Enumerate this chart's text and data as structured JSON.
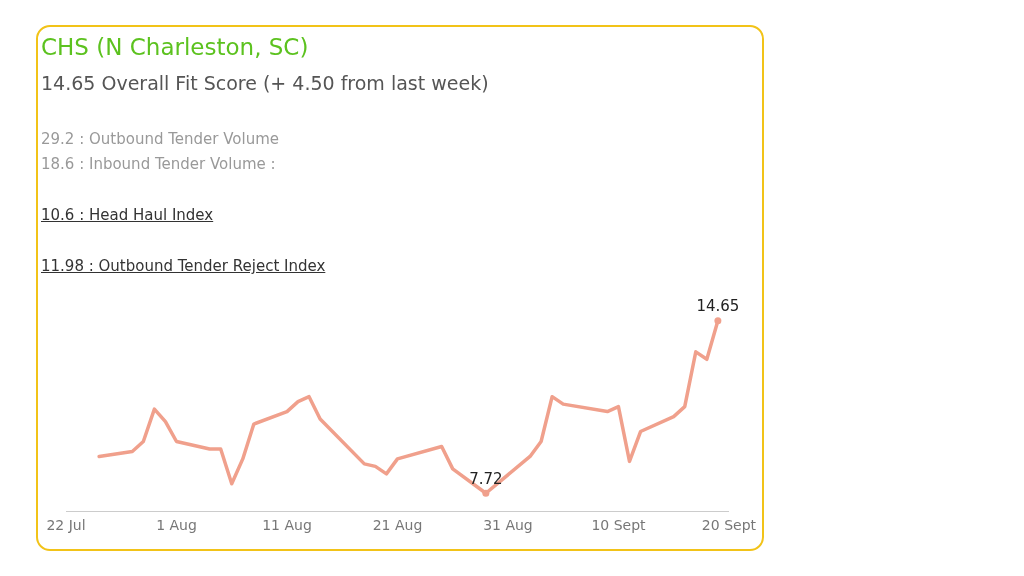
{
  "chart_data": {
    "type": "line",
    "title": "CHS (N Charleston, SC)",
    "subtitle": "14.65 Overall Fit Score (+ 4.50 from last week)",
    "annotations": [
      "29.2 : Outbound Tender Volume",
      "18.6 : Inbound Tender Volume :",
      "10.6 : Head Haul Index",
      "11.98 : Outbound Tender Reject Index"
    ],
    "x": [
      "--07-25",
      "--07-28",
      "--07-29",
      "--07-30",
      "--07-31",
      "--08-01",
      "--08-04",
      "--08-05",
      "--08-06",
      "--08-07",
      "--08-08",
      "--08-11",
      "--08-12",
      "--08-13",
      "--08-14",
      "--08-18",
      "--08-19",
      "--08-20",
      "--08-21",
      "--08-25",
      "--08-26",
      "--08-29",
      "--09-02",
      "--09-03",
      "--09-04",
      "--09-05",
      "--09-09",
      "--09-10",
      "--09-11",
      "--09-12",
      "--09-15",
      "--09-16",
      "--09-17",
      "--09-18",
      "--09-19"
    ],
    "series": [
      {
        "color": "#f0a08c",
        "values": [
          9.2,
          9.4,
          9.8,
          11.1,
          10.6,
          9.8,
          9.5,
          9.5,
          8.1,
          9.1,
          10.5,
          11.0,
          11.4,
          11.6,
          10.7,
          8.9,
          8.8,
          8.5,
          9.1,
          9.6,
          8.7,
          7.72,
          9.2,
          9.8,
          11.6,
          11.3,
          11.0,
          11.2,
          9.0,
          10.2,
          10.8,
          11.2,
          13.4,
          13.1,
          14.65
        ],
        "value_labels": [
          null,
          null,
          null,
          null,
          null,
          null,
          null,
          null,
          null,
          null,
          null,
          null,
          null,
          null,
          null,
          null,
          null,
          null,
          null,
          null,
          null,
          "7.72",
          null,
          null,
          null,
          null,
          null,
          null,
          null,
          null,
          null,
          null,
          null,
          null,
          "14.65"
        ]
      }
    ],
    "xlim": [
      "--07-22",
      "--09-20"
    ],
    "xticks": [
      {
        "value": "--07-22",
        "label": "22 Jul"
      },
      {
        "value": "--08-01",
        "label": "1 Aug"
      },
      {
        "value": "--08-11",
        "label": "11 Aug"
      },
      {
        "value": "--08-21",
        "label": "21 Aug"
      },
      {
        "value": "--08-31",
        "label": "31 Aug"
      },
      {
        "value": "--09-10",
        "label": "10 Sept"
      },
      {
        "value": "--09-20",
        "label": "20 Sept"
      }
    ],
    "legend": false
  }
}
